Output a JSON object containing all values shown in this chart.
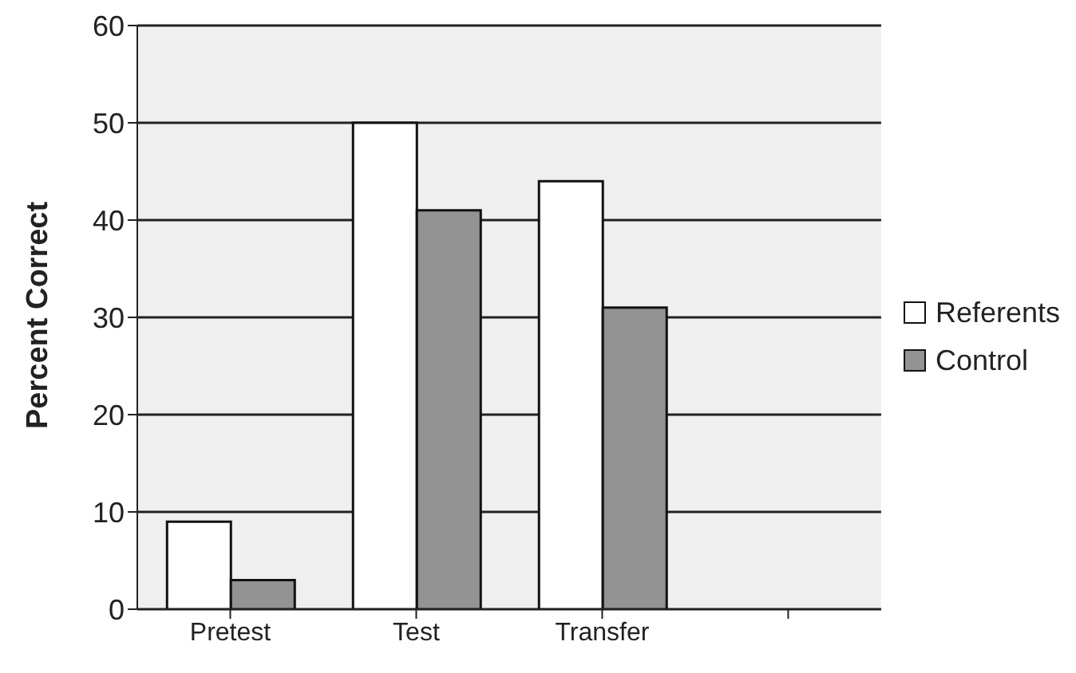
{
  "chart_data": {
    "type": "bar",
    "ylabel": "Percent Correct",
    "categories": [
      "Pretest",
      "Test",
      "Transfer",
      null
    ],
    "series": [
      {
        "name": "Referents",
        "color": "#ffffff",
        "values": [
          9,
          50,
          44,
          null
        ]
      },
      {
        "name": "Control",
        "color": "#939393",
        "values": [
          3,
          41,
          31,
          null
        ]
      }
    ],
    "ylim": [
      0,
      60
    ],
    "yticks": [
      0,
      10,
      20,
      30,
      40,
      50,
      60
    ],
    "grid": "y",
    "legend": "right"
  }
}
